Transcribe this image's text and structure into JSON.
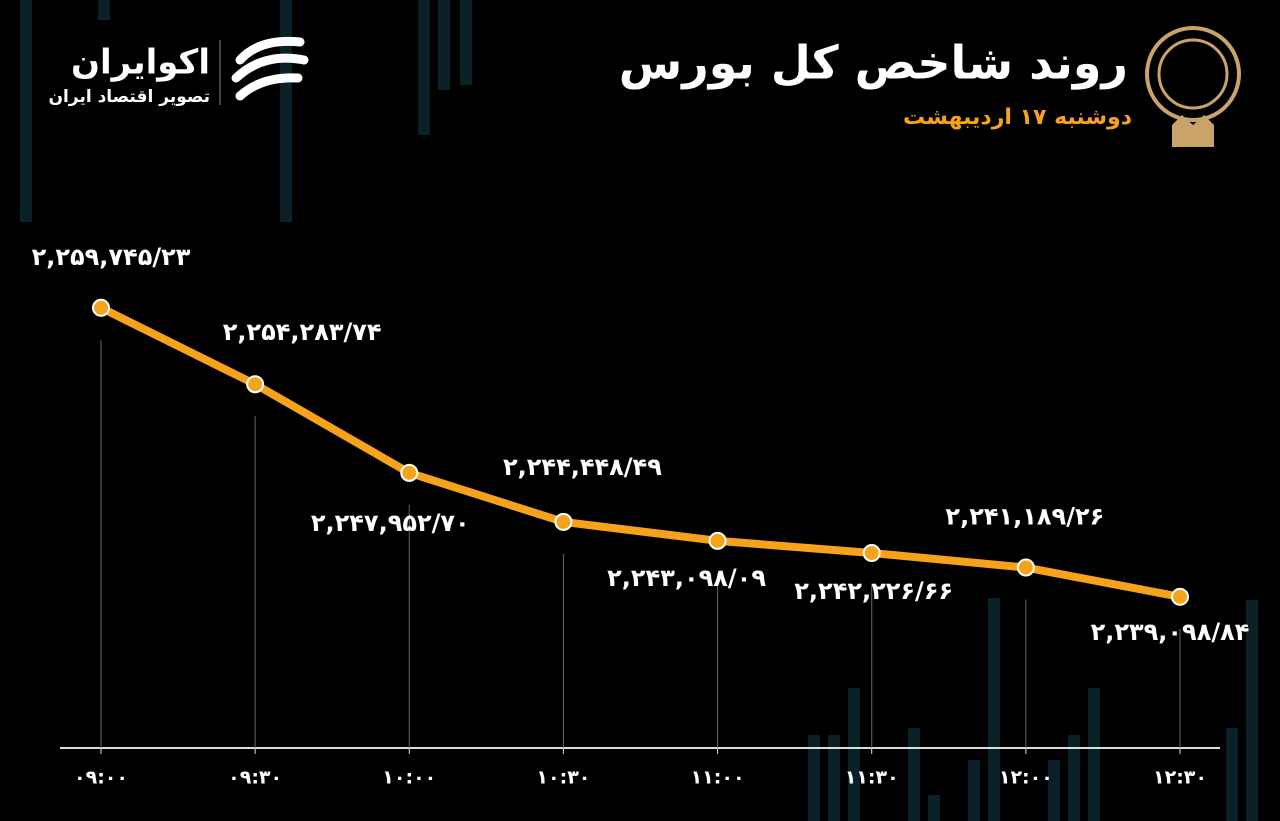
{
  "brand": {
    "name": "اکوایران",
    "tagline": "تصویر اقتصاد ایران"
  },
  "chart_data": {
    "type": "line",
    "title": "روند شاخص کل بورس",
    "subtitle": "دوشنبه ۱۷ اردیبهشت",
    "categories": [
      "۰۹:۰۰",
      "۰۹:۳۰",
      "۱۰:۰۰",
      "۱۰:۳۰",
      "۱۱:۰۰",
      "۱۱:۳۰",
      "۱۲:۰۰",
      "۱۲:۳۰"
    ],
    "values": [
      2259745.23,
      2254283.74,
      2247952.7,
      2244448.49,
      2243098.09,
      2242226.66,
      2241189.26,
      2239098.84
    ],
    "value_labels": [
      "۲,۲۵۹,۷۴۵/۲۳",
      "۲,۲۵۴,۲۸۳/۷۴",
      "۲,۲۴۷,۹۵۲/۷۰",
      "۲,۲۴۴,۴۴۸/۴۹",
      "۲,۲۴۳,۰۹۸/۰۹",
      "۲,۲۴۲,۲۲۶/۶۶",
      "۲,۲۴۱,۱۸۹/۲۶",
      "۲,۲۳۹,۰۹۸/۸۴"
    ],
    "color": "#f7a21b",
    "ylim": [
      2228300,
      2265300
    ]
  }
}
